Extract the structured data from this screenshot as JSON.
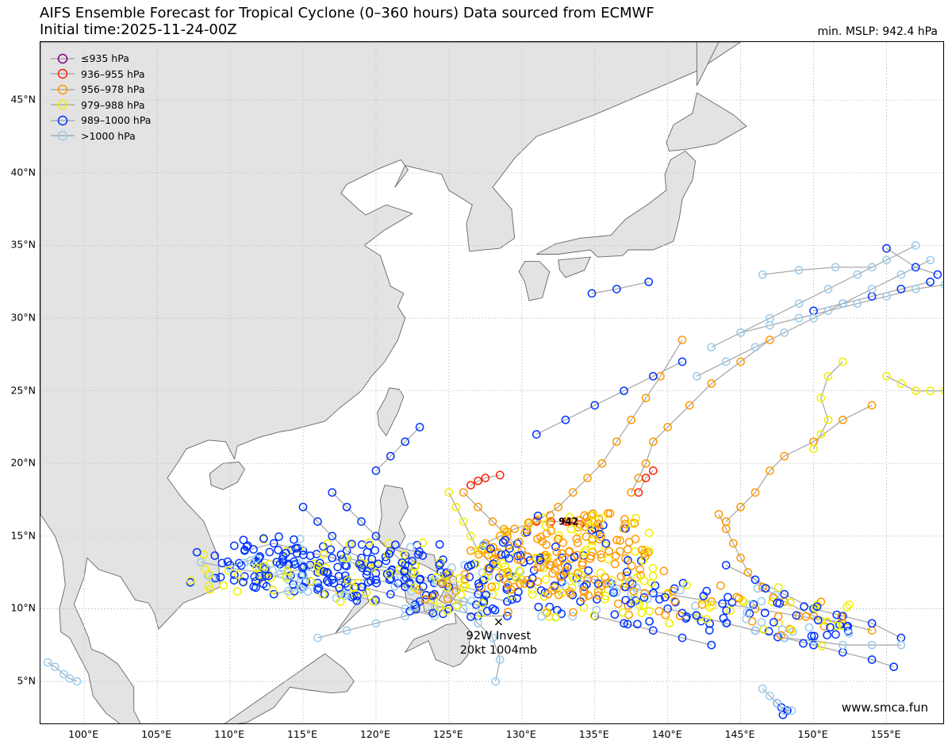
{
  "title_line1": "AIFS Ensemble Forecast for Tropical Cyclone (0–360 hours) Data sourced from ECMWF",
  "title_line2": "Initial time:2025-11-24-00Z",
  "min_mslp_label": "min. MSLP: 942.4 hPa",
  "watermark": "www.smca.fun",
  "map": {
    "lon_range": [
      97,
      159
    ],
    "lat_range": [
      2,
      49
    ],
    "lon_ticks": [
      100,
      105,
      110,
      115,
      120,
      125,
      130,
      135,
      140,
      145,
      150,
      155
    ],
    "lat_ticks": [
      5,
      10,
      15,
      20,
      25,
      30,
      35,
      40,
      45
    ],
    "lon_tick_labels": [
      "100°E",
      "105°E",
      "110°E",
      "115°E",
      "120°E",
      "125°E",
      "130°E",
      "135°E",
      "140°E",
      "145°E",
      "150°E",
      "155°E"
    ],
    "lat_tick_labels": [
      "5°N",
      "10°N",
      "15°N",
      "20°N",
      "25°N",
      "30°N",
      "35°N",
      "40°N",
      "45°N"
    ],
    "grid": true,
    "land_color": "#e3e3e3",
    "coast_color": "#666666",
    "track_color": "#aaaaaa"
  },
  "legend": {
    "placement": "top-left",
    "items": [
      {
        "label": "≤935 hPa",
        "color": "#800080"
      },
      {
        "label": "936–955 hPa",
        "color": "#ff2000"
      },
      {
        "label": "956–978 hPa",
        "color": "#ff9900"
      },
      {
        "label": "979–988 hPa",
        "color": "#f0f000"
      },
      {
        "label": "989–1000 hPa",
        "color": "#0033ff"
      },
      {
        "label": ">1000 hPa",
        "color": "#99ccee"
      }
    ]
  },
  "annotations": {
    "invest_line1": "92W Invest",
    "invest_line2": "20kt 1004mb",
    "invest_position": [
      128.4,
      9.1
    ],
    "min_marker_label": "942",
    "min_marker_position": [
      133.2,
      16.0
    ]
  },
  "chart_data": {
    "type": "scatter",
    "x_units": "longitude °E",
    "y_units": "latitude °N",
    "tracks": [
      {
        "category": 4,
        "points": [
          [
            110,
            13
          ],
          [
            112,
            13.5
          ],
          [
            114,
            13
          ],
          [
            116,
            12.5
          ],
          [
            118,
            12
          ],
          [
            120,
            12
          ],
          [
            122,
            11.5
          ],
          [
            124,
            11
          ],
          [
            126,
            10.5
          ],
          [
            128,
            10
          ]
        ]
      },
      {
        "category": 4,
        "points": [
          [
            111,
            14
          ],
          [
            113,
            14.5
          ],
          [
            115,
            14
          ],
          [
            117,
            13.5
          ],
          [
            119,
            13
          ],
          [
            121,
            12.5
          ],
          [
            123,
            12
          ],
          [
            125,
            11.5
          ],
          [
            127,
            11
          ],
          [
            129,
            10.5
          ]
        ]
      },
      {
        "category": 3,
        "points": [
          [
            112,
            12
          ],
          [
            114,
            12.5
          ],
          [
            116,
            13
          ],
          [
            118,
            13.5
          ],
          [
            120,
            13
          ],
          [
            122,
            12.5
          ],
          [
            124,
            12
          ],
          [
            126,
            11.5
          ],
          [
            128,
            11
          ]
        ]
      },
      {
        "category": 4,
        "points": [
          [
            113,
            11
          ],
          [
            115,
            11.5
          ],
          [
            117,
            12
          ],
          [
            119,
            11.5
          ],
          [
            121,
            11
          ],
          [
            123,
            10.5
          ],
          [
            125,
            10
          ],
          [
            127,
            9.5
          ],
          [
            129,
            9.5
          ]
        ]
      },
      {
        "category": 5,
        "points": [
          [
            108,
            13.2
          ],
          [
            110,
            12.8
          ],
          [
            112,
            12.5
          ],
          [
            114,
            12
          ],
          [
            116,
            11.5
          ],
          [
            118,
            11
          ],
          [
            120,
            10.5
          ],
          [
            122,
            10
          ],
          [
            124,
            9.5
          ]
        ]
      },
      {
        "category": 2,
        "points": [
          [
            126,
            18
          ],
          [
            127,
            17
          ],
          [
            128,
            16
          ],
          [
            129,
            15
          ],
          [
            130,
            14
          ],
          [
            131,
            13.5
          ],
          [
            132,
            13
          ],
          [
            133,
            12.5
          ],
          [
            135,
            12
          ],
          [
            137,
            11.5
          ],
          [
            140,
            11
          ],
          [
            143,
            10.5
          ],
          [
            146,
            10
          ],
          [
            149,
            9.5
          ],
          [
            152,
            9
          ]
        ]
      },
      {
        "category": 2,
        "points": [
          [
            126.5,
            14
          ],
          [
            127.5,
            14.5
          ],
          [
            128.5,
            15
          ],
          [
            129.5,
            15.5
          ],
          [
            131,
            16
          ],
          [
            132.5,
            17
          ],
          [
            133.5,
            18
          ],
          [
            134.5,
            19
          ],
          [
            135.5,
            20
          ],
          [
            136.5,
            21.5
          ],
          [
            137.5,
            23
          ],
          [
            138.5,
            24.5
          ],
          [
            139.5,
            26
          ],
          [
            141,
            28.5
          ]
        ]
      },
      {
        "category": 2,
        "points": [
          [
            143.5,
            16.5
          ],
          [
            144,
            15.5
          ],
          [
            144.5,
            14.5
          ],
          [
            145,
            13.5
          ],
          [
            145.5,
            12.5
          ],
          [
            146.5,
            11.5
          ],
          [
            148,
            10.5
          ],
          [
            150,
            9.5
          ],
          [
            152,
            9
          ],
          [
            154,
            8.5
          ]
        ]
      },
      {
        "category": 2,
        "points": [
          [
            144,
            16
          ],
          [
            145,
            17
          ],
          [
            146,
            18
          ],
          [
            147,
            19.5
          ],
          [
            148,
            20.5
          ],
          [
            150,
            21.5
          ],
          [
            152,
            23
          ],
          [
            154,
            24
          ]
        ]
      },
      {
        "category": 2,
        "points": [
          [
            137.5,
            18
          ],
          [
            138,
            19
          ],
          [
            138.5,
            20
          ],
          [
            139,
            21.5
          ],
          [
            140,
            22.5
          ],
          [
            141.5,
            24
          ],
          [
            143,
            25.5
          ],
          [
            145,
            27
          ],
          [
            147,
            28.5
          ]
        ]
      },
      {
        "category": 1,
        "points": [
          [
            131,
            16
          ],
          [
            132,
            16
          ],
          [
            133,
            16
          ],
          [
            133.2,
            16
          ],
          [
            134,
            15.8
          ],
          [
            135,
            15.5
          ]
        ]
      },
      {
        "category": 1,
        "points": [
          [
            126.5,
            18.5
          ],
          [
            127,
            18.8
          ],
          [
            127.5,
            19
          ],
          [
            128.5,
            19.2
          ]
        ]
      },
      {
        "category": 1,
        "points": [
          [
            138,
            18
          ],
          [
            138.5,
            19
          ],
          [
            139,
            19.5
          ]
        ]
      },
      {
        "category": 3,
        "points": [
          [
            125,
            18
          ],
          [
            125.5,
            17
          ],
          [
            126,
            16
          ],
          [
            126.5,
            15
          ],
          [
            127,
            14
          ],
          [
            128,
            13
          ],
          [
            129,
            12.5
          ],
          [
            130,
            12
          ]
        ]
      },
      {
        "category": 3,
        "points": [
          [
            150,
            21
          ],
          [
            150.5,
            22
          ],
          [
            151,
            23
          ],
          [
            150.5,
            24.5
          ],
          [
            151,
            26
          ],
          [
            152,
            27
          ]
        ]
      },
      {
        "category": 3,
        "points": [
          [
            155,
            26
          ],
          [
            156,
            25.5
          ],
          [
            157,
            25
          ],
          [
            158,
            25
          ],
          [
            159,
            25
          ]
        ]
      },
      {
        "category": 4,
        "points": [
          [
            115,
            17
          ],
          [
            116,
            16
          ],
          [
            117,
            15
          ],
          [
            118,
            14
          ],
          [
            119,
            13.5
          ]
        ]
      },
      {
        "category": 4,
        "points": [
          [
            117,
            18
          ],
          [
            118,
            17
          ],
          [
            119,
            16
          ],
          [
            120,
            15
          ],
          [
            121,
            14
          ],
          [
            122,
            13
          ]
        ]
      },
      {
        "category": 4,
        "points": [
          [
            123,
            22.5
          ],
          [
            122,
            21.5
          ],
          [
            121,
            20.5
          ],
          [
            120,
            19.5
          ]
        ]
      },
      {
        "category": 4,
        "points": [
          [
            134.8,
            31.7
          ],
          [
            136.5,
            32
          ],
          [
            138.7,
            32.5
          ]
        ]
      },
      {
        "category": 4,
        "points": [
          [
            131,
            22
          ],
          [
            133,
            23
          ],
          [
            135,
            24
          ],
          [
            137,
            25
          ],
          [
            139,
            26
          ],
          [
            141,
            27
          ]
        ]
      },
      {
        "category": 4,
        "points": [
          [
            150,
            30.5
          ],
          [
            152,
            31
          ],
          [
            154,
            31.5
          ],
          [
            156,
            32
          ],
          [
            158,
            32.5
          ]
        ]
      },
      {
        "category": 4,
        "points": [
          [
            155,
            34.8
          ],
          [
            157,
            33.5
          ],
          [
            158.5,
            33
          ]
        ]
      },
      {
        "category": 4,
        "points": [
          [
            140,
            10
          ],
          [
            142,
            9.5
          ],
          [
            144,
            9
          ],
          [
            146,
            8.5
          ],
          [
            148,
            8
          ],
          [
            150,
            7.5
          ],
          [
            152,
            7
          ],
          [
            154,
            6.5
          ],
          [
            155.5,
            6
          ]
        ]
      },
      {
        "category": 4,
        "points": [
          [
            135,
            9.5
          ],
          [
            137,
            9
          ],
          [
            139,
            8.5
          ],
          [
            141,
            8
          ],
          [
            143,
            7.5
          ]
        ]
      },
      {
        "category": 4,
        "points": [
          [
            144,
            13
          ],
          [
            146,
            12
          ],
          [
            148,
            11
          ],
          [
            150,
            10
          ],
          [
            152,
            9.5
          ],
          [
            154,
            9
          ],
          [
            156,
            8
          ]
        ]
      },
      {
        "category": 4,
        "points": [
          [
            147.5,
            3.5
          ],
          [
            147.8,
            3.2
          ],
          [
            148.2,
            3
          ],
          [
            147.9,
            2.7
          ]
        ]
      },
      {
        "category": 5,
        "points": [
          [
            145,
            29
          ],
          [
            147,
            29.5
          ],
          [
            149,
            30
          ],
          [
            151,
            30.5
          ],
          [
            153,
            31
          ],
          [
            155,
            31.5
          ],
          [
            157,
            32
          ],
          [
            159,
            32.3
          ]
        ]
      },
      {
        "category": 5,
        "points": [
          [
            143,
            28
          ],
          [
            145,
            29
          ],
          [
            147,
            30
          ],
          [
            149,
            31
          ],
          [
            151,
            32
          ],
          [
            153,
            33
          ],
          [
            155,
            34
          ],
          [
            157,
            35
          ]
        ]
      },
      {
        "category": 5,
        "points": [
          [
            142,
            26
          ],
          [
            144,
            27
          ],
          [
            146,
            28
          ],
          [
            148,
            29
          ],
          [
            150,
            30
          ],
          [
            152,
            31
          ],
          [
            154,
            32
          ],
          [
            156,
            33
          ],
          [
            158,
            34
          ]
        ]
      },
      {
        "category": 5,
        "points": [
          [
            146.5,
            33
          ],
          [
            149,
            33.3
          ],
          [
            151.5,
            33.5
          ],
          [
            154,
            33.5
          ]
        ]
      },
      {
        "category": 5,
        "points": [
          [
            146.5,
            4.5
          ],
          [
            147,
            4
          ],
          [
            147.5,
            3.5
          ],
          [
            148,
            3
          ],
          [
            148.5,
            3
          ]
        ]
      },
      {
        "category": 5,
        "points": [
          [
            97.5,
            6.3
          ],
          [
            98,
            6
          ],
          [
            98.6,
            5.5
          ],
          [
            99,
            5.2
          ],
          [
            99.5,
            5
          ]
        ]
      },
      {
        "category": 5,
        "points": [
          [
            142,
            9.5
          ],
          [
            144,
            9
          ],
          [
            146,
            8.5
          ],
          [
            148,
            8
          ],
          [
            150,
            7.8
          ],
          [
            152,
            7.5
          ],
          [
            154,
            7.5
          ],
          [
            156,
            7.5
          ]
        ]
      },
      {
        "category": 5,
        "points": [
          [
            124,
            12
          ],
          [
            125,
            11
          ],
          [
            126,
            10
          ],
          [
            127,
            9
          ],
          [
            128,
            8
          ],
          [
            128.5,
            6.5
          ],
          [
            128.2,
            5
          ]
        ]
      },
      {
        "category": 5,
        "points": [
          [
            116,
            8
          ],
          [
            118,
            8.5
          ],
          [
            120,
            9
          ],
          [
            122,
            9.5
          ],
          [
            124,
            10
          ],
          [
            126,
            10.5
          ]
        ]
      }
    ],
    "points": [],
    "cluster_centers": [
      [
        110,
        12.5
      ],
      [
        115,
        12.5
      ],
      [
        120,
        12
      ],
      [
        125,
        11
      ],
      [
        130,
        11
      ],
      [
        135,
        11
      ],
      [
        140,
        10.5
      ],
      [
        145,
        10
      ],
      [
        150,
        9
      ],
      [
        130,
        14
      ],
      [
        133,
        15
      ],
      [
        136,
        15
      ],
      [
        113,
        13.5
      ],
      [
        117,
        13
      ],
      [
        122,
        13
      ],
      [
        127,
        13
      ],
      [
        132,
        12.5
      ],
      [
        137,
        12.5
      ]
    ]
  }
}
